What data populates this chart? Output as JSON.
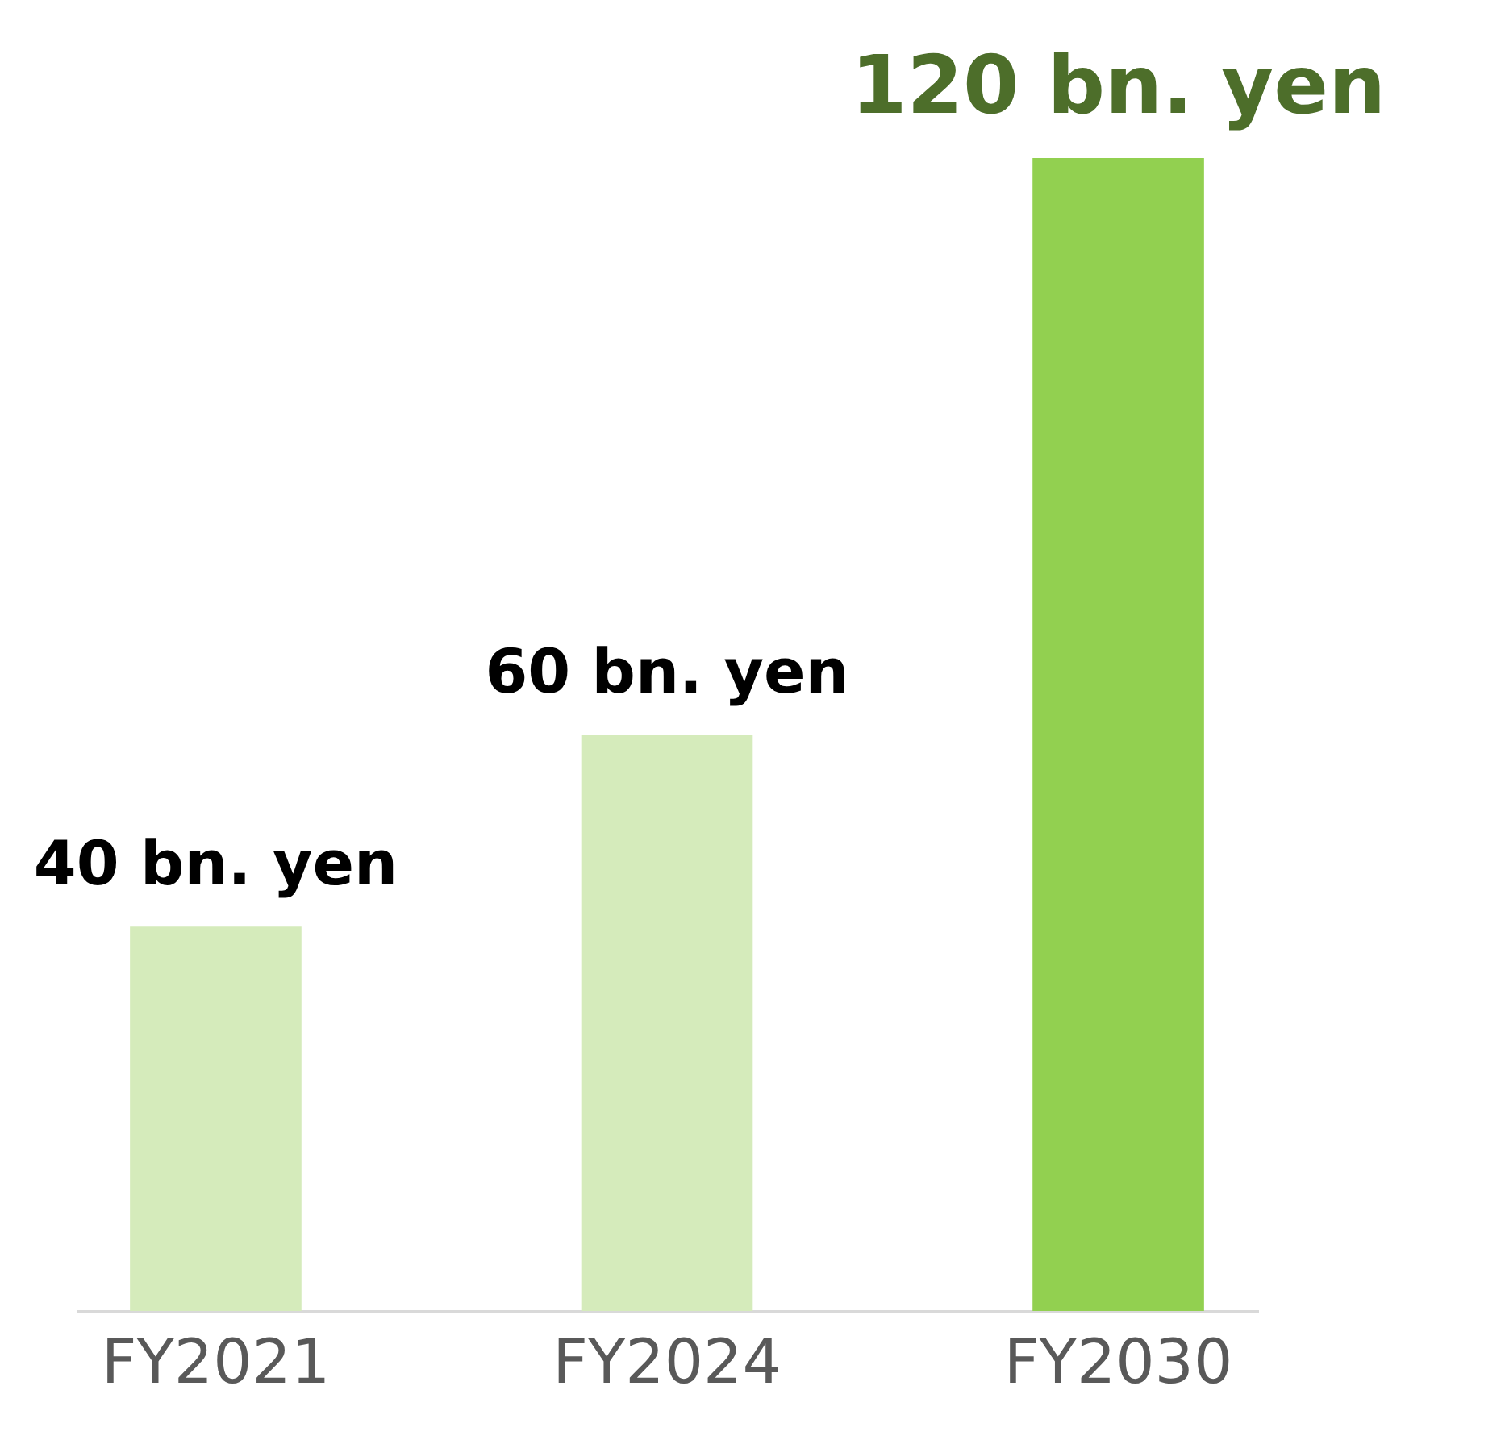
{
  "chart_data": {
    "type": "bar",
    "categories": [
      "FY2021",
      "FY2024",
      "FY2030"
    ],
    "values": [
      40,
      60,
      120
    ],
    "colors": [
      "#d5ebbb",
      "#d5ebbb",
      "#92d050"
    ],
    "value_labels": [
      "40 bn. yen",
      "60 bn. yen",
      "120 bn. yen"
    ],
    "grid": false
  }
}
